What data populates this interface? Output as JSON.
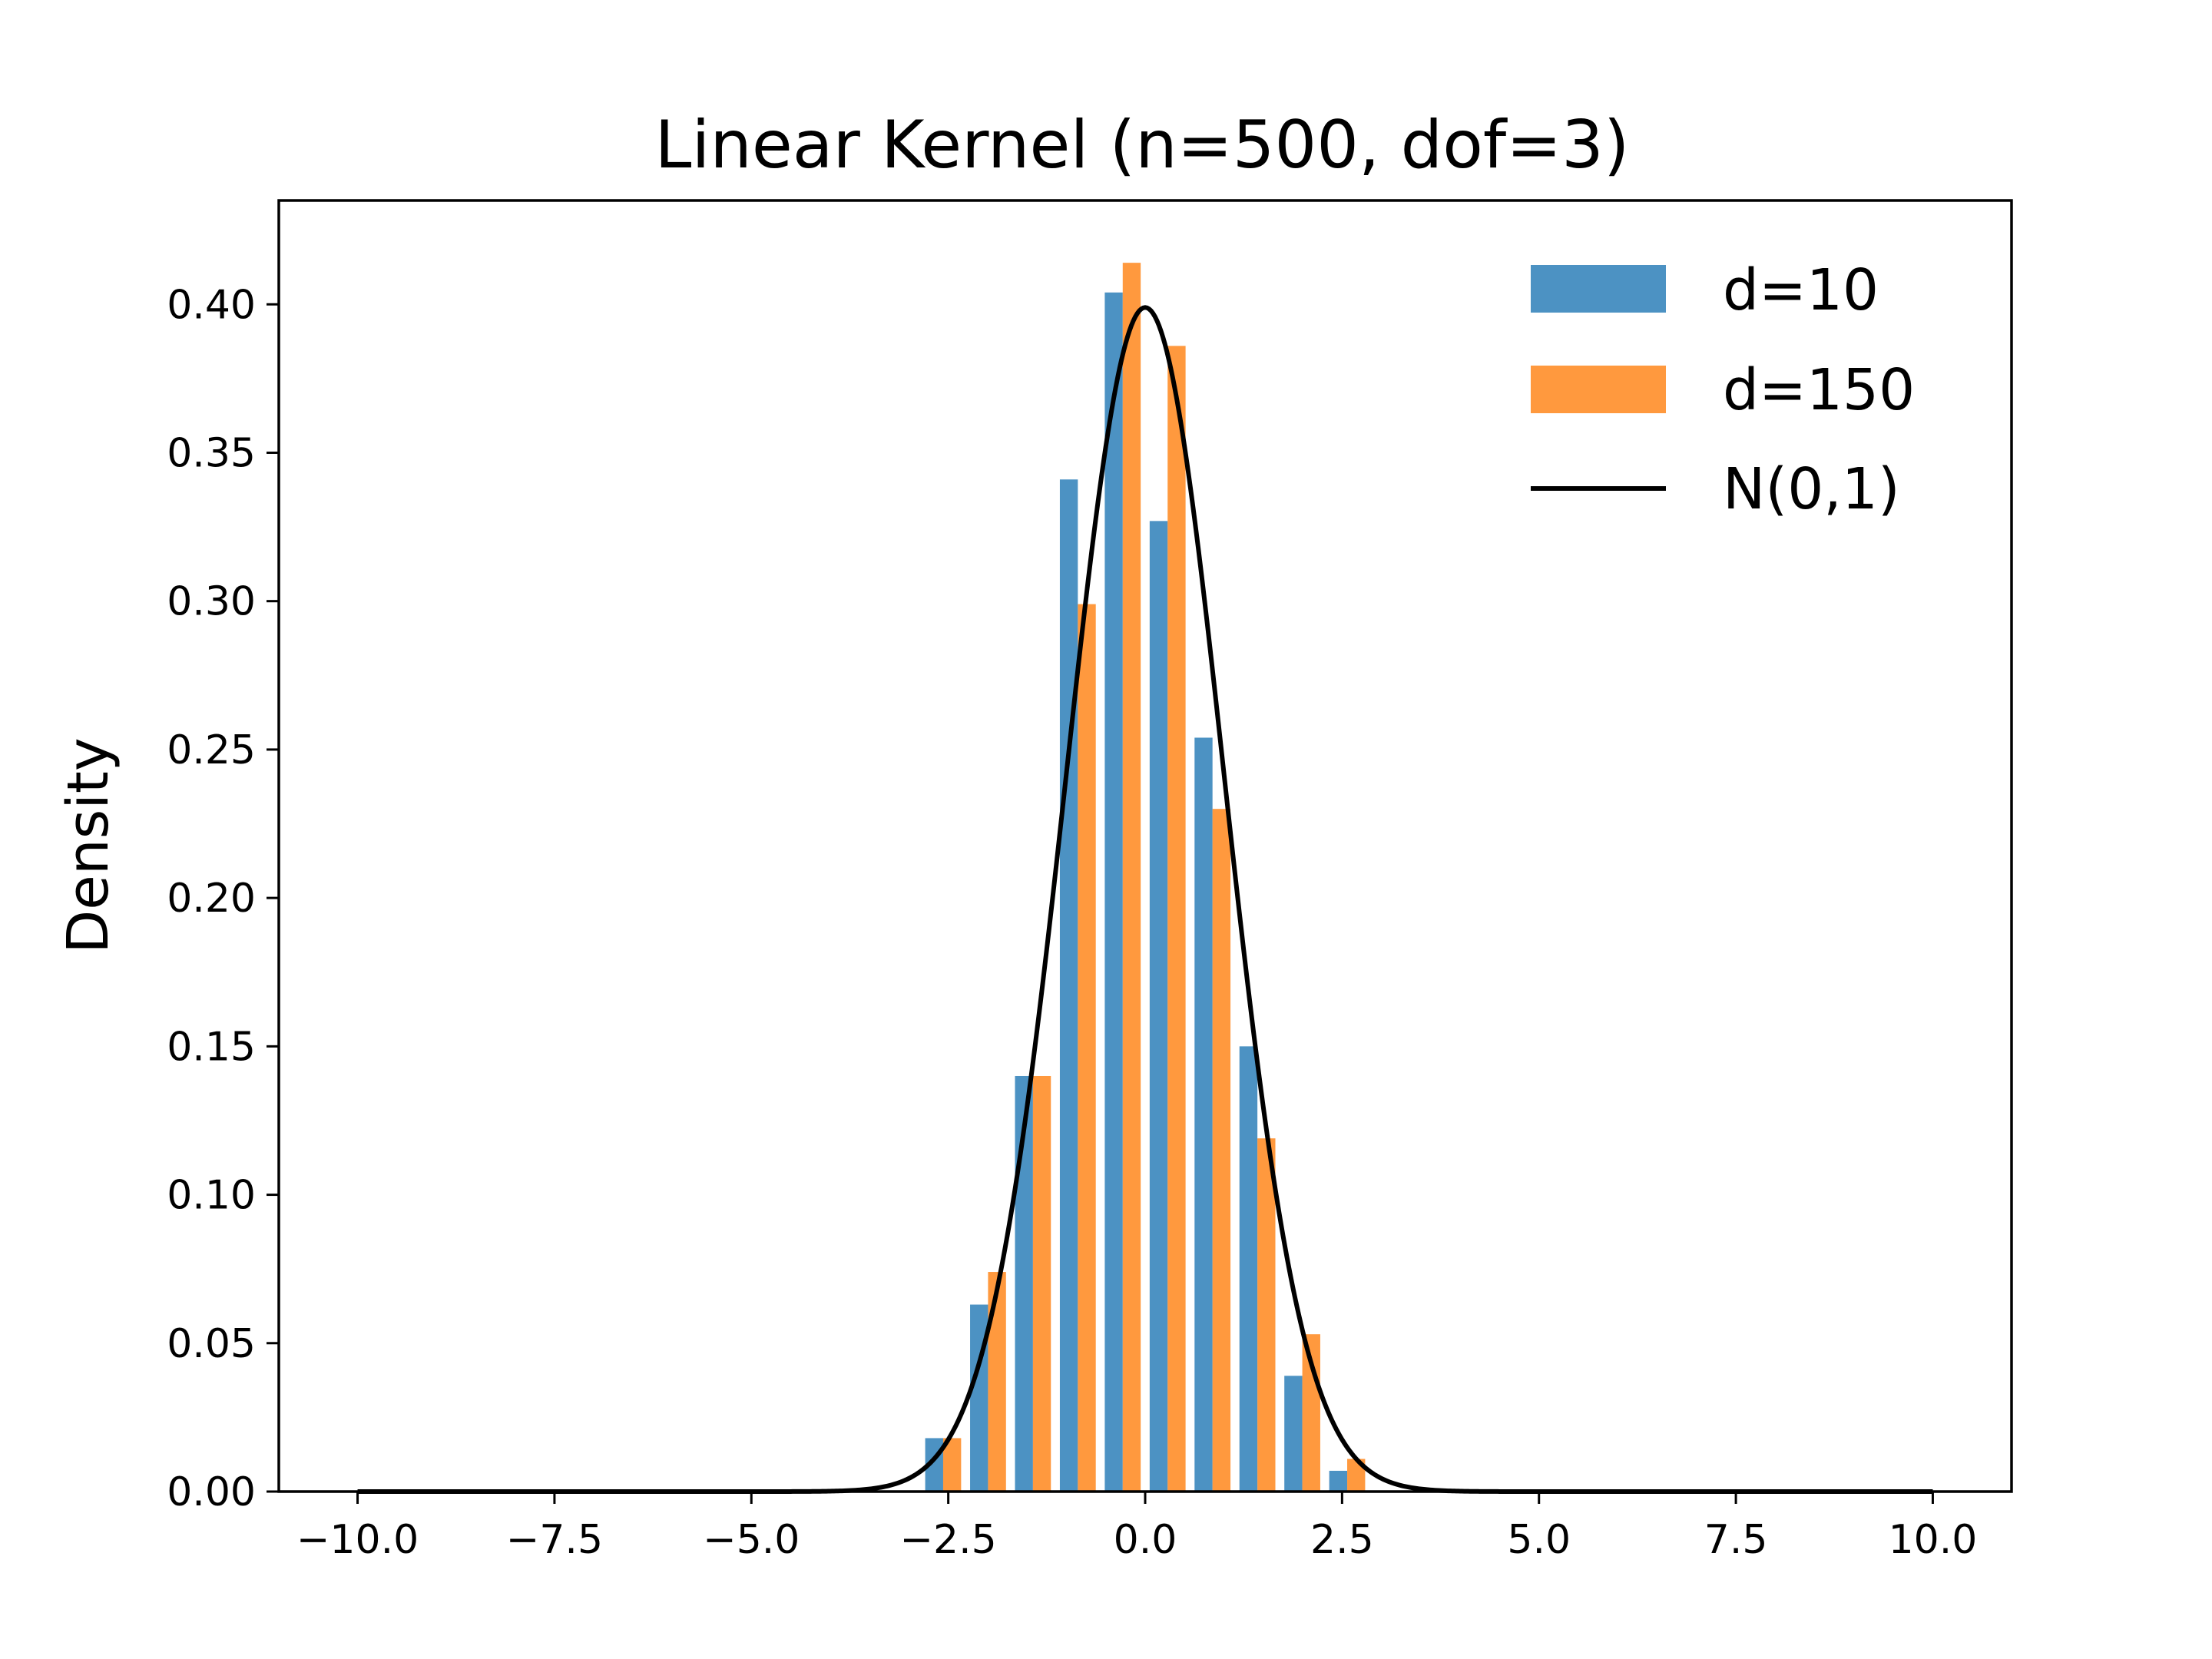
{
  "chart_data": {
    "type": "bar",
    "title": "Linear Kernel (n=500, dof=3)",
    "xlabel": "",
    "ylabel": "Density",
    "xlim": [
      -11.0,
      11.0
    ],
    "ylim": [
      0,
      0.435
    ],
    "grid": false,
    "legend_position": "top-right",
    "bin_edges": [
      -2.85,
      -2.28,
      -1.71,
      -1.14,
      -0.57,
      0.0,
      0.57,
      1.14,
      1.71,
      2.28,
      2.85
    ],
    "x_ticks": [
      -10.0,
      -7.5,
      -5.0,
      -2.5,
      0.0,
      2.5,
      5.0,
      7.5,
      10.0
    ],
    "x_tick_labels": [
      "−10.0",
      "−7.5",
      "−5.0",
      "−2.5",
      "0.0",
      "2.5",
      "5.0",
      "7.5",
      "10.0"
    ],
    "y_ticks": [
      0.0,
      0.05,
      0.1,
      0.15,
      0.2,
      0.25,
      0.3,
      0.35,
      0.4
    ],
    "y_tick_labels": [
      "0.00",
      "0.05",
      "0.10",
      "0.15",
      "0.20",
      "0.25",
      "0.30",
      "0.35",
      "0.40"
    ],
    "series": [
      {
        "name": "d=10",
        "color": "#1f77b4",
        "opacity": 0.8,
        "values": [
          0.018,
          0.063,
          0.14,
          0.341,
          0.404,
          0.327,
          0.254,
          0.15,
          0.039,
          0.007
        ]
      },
      {
        "name": "d=150",
        "color": "#ff7f0e",
        "opacity": 0.8,
        "values": [
          0.018,
          0.074,
          0.14,
          0.299,
          0.414,
          0.386,
          0.23,
          0.119,
          0.053,
          0.011
        ]
      }
    ],
    "curve": {
      "name": "N(0,1)",
      "color": "#000000",
      "type": "line",
      "function": "standard normal pdf",
      "x_range": [
        -10,
        10
      ]
    }
  }
}
